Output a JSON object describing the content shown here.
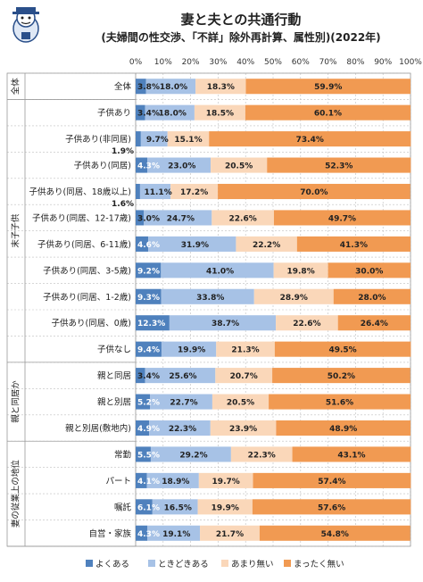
{
  "chart_data": {
    "type": "bar",
    "orientation": "horizontal",
    "stacked": "percent",
    "title": "妻と夫との共通行動",
    "subtitle": "(夫婦間の性交渉、「不詳」除外再計算、属性別)(2022年)",
    "xticks": [
      "0%",
      "10%",
      "20%",
      "30%",
      "40%",
      "50%",
      "60%",
      "70%",
      "80%",
      "90%",
      "100%"
    ],
    "xlim": [
      0,
      100
    ],
    "grid": true,
    "legend_position": "bottom",
    "categories": [
      "全体",
      "子供あり",
      "子供あり(非同居)",
      "子供あり(同居)",
      "子供あり(同居、18歳以上)",
      "子供あり(同居、12-17歳)",
      "子供あり(同居、6-11歳)",
      "子供あり(同居、3-5歳)",
      "子供あり(同居、1-2歳)",
      "子供あり(同居、0歳)",
      "子供なし",
      "親と同居",
      "親と別居",
      "親と別居(敷地内)",
      "常勤",
      "パート",
      "嘱託",
      "自営・家族"
    ],
    "groups": [
      {
        "label": "全体",
        "start": 0,
        "end": 0
      },
      {
        "label": "末子子供",
        "start": 1,
        "end": 10
      },
      {
        "label": "親と同居か",
        "start": 11,
        "end": 13
      },
      {
        "label": "妻の従業上の地位",
        "start": 14,
        "end": 17
      }
    ],
    "series": [
      {
        "name": "よくある",
        "color": "#4f81bd",
        "values": [
          3.8,
          3.4,
          1.9,
          4.3,
          1.6,
          3.0,
          4.6,
          9.2,
          9.3,
          12.3,
          9.4,
          3.4,
          5.2,
          4.9,
          5.5,
          4.1,
          6.1,
          4.3
        ]
      },
      {
        "name": "ときどきある",
        "color": "#a7c2e6",
        "values": [
          18.0,
          18.0,
          9.7,
          23.0,
          11.1,
          24.7,
          31.9,
          41.0,
          33.8,
          38.7,
          19.9,
          25.6,
          22.7,
          22.3,
          29.2,
          18.9,
          16.5,
          19.1
        ]
      },
      {
        "name": "あまり無い",
        "color": "#fad7b9",
        "values": [
          18.3,
          18.5,
          15.1,
          20.5,
          17.2,
          22.6,
          22.2,
          19.8,
          28.9,
          22.6,
          21.3,
          20.7,
          20.5,
          23.9,
          22.3,
          19.7,
          19.9,
          21.7
        ]
      },
      {
        "name": "まったく無い",
        "color": "#f19a52",
        "values": [
          59.9,
          60.1,
          73.4,
          52.3,
          70.0,
          49.7,
          41.3,
          30.0,
          28.0,
          26.4,
          49.5,
          50.2,
          51.6,
          48.9,
          43.1,
          57.4,
          57.6,
          54.8
        ]
      }
    ]
  }
}
